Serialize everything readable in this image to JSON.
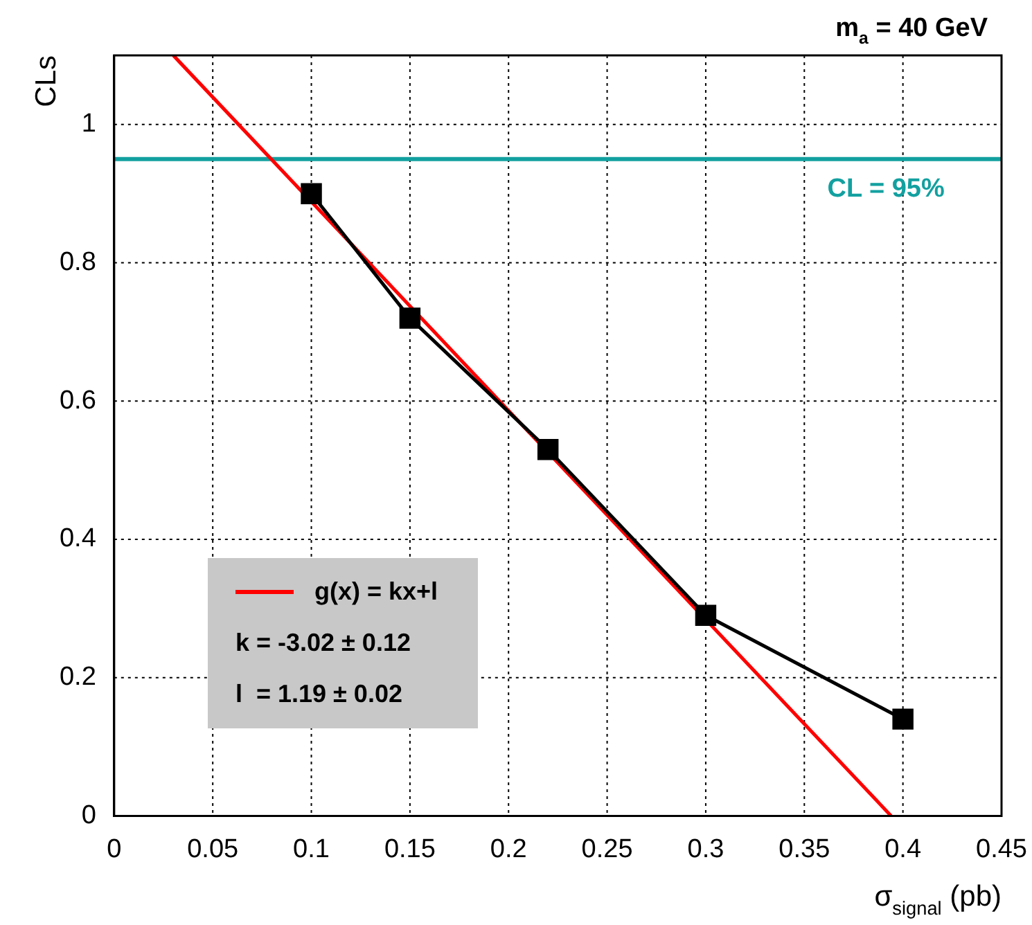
{
  "chart_data": {
    "type": "line",
    "title": "m$_{a}$ = 40 GeV",
    "xlabel": "σ$_{signal}$ (pb)",
    "ylabel": "CLs",
    "x": [
      0.1,
      0.15,
      0.22,
      0.3,
      0.4
    ],
    "series": [
      {
        "color": "#000000",
        "marker": "square",
        "line_style": "solid",
        "values": [
          0.9,
          0.72,
          0.53,
          0.29,
          0.14
        ]
      },
      {
        "name": "g(x) = kx+l",
        "color": "#ff0000",
        "marker": "none",
        "line_style": "solid",
        "x": [
          0.03,
          0.394
        ],
        "values": [
          1.1,
          0
        ]
      }
    ],
    "xlim": [
      0,
      0.45
    ],
    "xticks": [
      0,
      0.05,
      0.1,
      0.15,
      0.2,
      0.25,
      0.3,
      0.35,
      0.4,
      0.45
    ],
    "ylim": [
      0,
      1.1
    ],
    "yticks": [
      0,
      0.2,
      0.4,
      0.6,
      0.8,
      1
    ],
    "ref_lines": [
      {
        "axis": "y",
        "value": 0.95,
        "label": "CL = 95%",
        "color": "#13a0a0"
      }
    ],
    "annotations": [
      "k = -3.02 ± 0.12",
      "l  = 1.19 ± 0.02"
    ],
    "grid": true,
    "legend": "bottom left"
  }
}
